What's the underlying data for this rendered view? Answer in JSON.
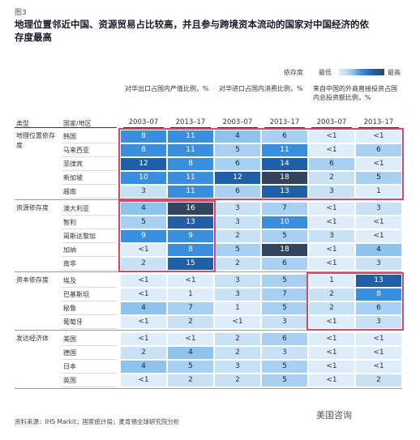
{
  "header": {
    "figure": "图3",
    "title": "地理位置邻近中国、资源贸易占比较高，并且参与跨境资本流动的国家对中国经济的依存度最高"
  },
  "legend": {
    "label": "依存度",
    "low": "最低",
    "high": "最高"
  },
  "table": {
    "group_headers": [
      "对华出口占国内产值比例，%",
      "对华进口占国内消费比例，%",
      "来自中国的外商直接投资占国内总投资额比例，%"
    ],
    "columns": [
      "类型",
      "国家/地区"
    ],
    "periods": [
      "2003–07",
      "2013–17",
      "2003–07",
      "2013–17",
      "2003–07",
      "2013–17"
    ],
    "groups": [
      {
        "name": "地理位置依存度",
        "rows": [
          {
            "country": "韩国",
            "cells": [
              "8",
              "11",
              "4",
              "6",
              "<1",
              "<1"
            ]
          },
          {
            "country": "马来西亚",
            "cells": [
              "8",
              "11",
              "5",
              "11",
              "<1",
              "6"
            ]
          },
          {
            "country": "菲律宾",
            "cells": [
              "12",
              "8",
              "6",
              "14",
              "6",
              "<1"
            ]
          },
          {
            "country": "新加坡",
            "cells": [
              "10",
              "11",
              "12",
              "18",
              "2",
              "5"
            ]
          },
          {
            "country": "越南",
            "cells": [
              "3",
              "11",
              "6",
              "13",
              "3",
              "1"
            ]
          }
        ]
      },
      {
        "name": "资源依存度",
        "rows": [
          {
            "country": "澳大利亚",
            "cells": [
              "4",
              "16",
              "3",
              "7",
              "<1",
              "3"
            ]
          },
          {
            "country": "智利",
            "cells": [
              "5",
              "13",
              "3",
              "10",
              "<1",
              "<1"
            ]
          },
          {
            "country": "哥斯达黎加",
            "cells": [
              "9",
              "9",
              "2",
              "5",
              "3",
              "<1"
            ]
          },
          {
            "country": "加纳",
            "cells": [
              "<1",
              "8",
              "5",
              "18",
              "<1",
              "4"
            ]
          },
          {
            "country": "南非",
            "cells": [
              "2",
              "15",
              "2",
              "6",
              "<1",
              "3"
            ]
          }
        ]
      },
      {
        "name": "资本依存度",
        "rows": [
          {
            "country": "埃及",
            "cells": [
              "<1",
              "<1",
              "3",
              "5",
              "1",
              "13"
            ]
          },
          {
            "country": "巴基斯坦",
            "cells": [
              "<1",
              "1",
              "3",
              "7",
              "2",
              "8"
            ]
          },
          {
            "country": "秘鲁",
            "cells": [
              "4",
              "7",
              "1",
              "5",
              "2",
              "6"
            ]
          },
          {
            "country": "葡萄牙",
            "cells": [
              "<1",
              "2",
              "<1",
              "3",
              "<1",
              "3"
            ]
          }
        ]
      },
      {
        "name": "发达经济体",
        "rows": [
          {
            "country": "美国",
            "cells": [
              "<1",
              "<1",
              "2",
              "6",
              "<1",
              "<1"
            ]
          },
          {
            "country": "德国",
            "cells": [
              "2",
              "4",
              "2",
              "3",
              "<1",
              "<1"
            ]
          },
          {
            "country": "日本",
            "cells": [
              "4",
              "5",
              "3",
              "5",
              "<1",
              "<1"
            ]
          },
          {
            "country": "英国",
            "cells": [
              "<1",
              "2",
              "2",
              "5",
              "<1",
              "2"
            ]
          }
        ]
      }
    ]
  },
  "footer": {
    "source": "资料来源：IHS Markit；国家统计局；麦肯锡全球研究院分析"
  },
  "watermark": "美国咨询"
}
